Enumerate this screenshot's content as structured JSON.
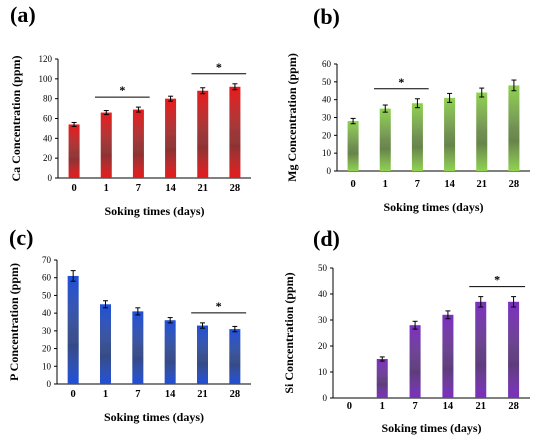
{
  "chart_data": [
    {
      "type": "bar",
      "panel_label": "(a)",
      "categories": [
        "0",
        "1",
        "7",
        "14",
        "21",
        "28"
      ],
      "values": [
        54,
        66,
        69,
        80,
        88,
        92
      ],
      "errors": [
        2,
        2,
        2.5,
        2.5,
        3,
        3
      ],
      "xlabel": "Soking times (days)",
      "ylabel": "Ca Concentration (ppm)",
      "ylim": [
        0,
        120
      ],
      "yticks": [
        "0",
        "20",
        "40",
        "60",
        "80",
        "100",
        "120"
      ],
      "color": "#e8191a",
      "significance": [
        {
          "from": 1,
          "to": 2,
          "label": "*"
        },
        {
          "from": 4,
          "to": 5,
          "label": "*"
        }
      ]
    },
    {
      "type": "bar",
      "panel_label": "(b)",
      "categories": [
        "0",
        "1",
        "7",
        "14",
        "21",
        "28"
      ],
      "values": [
        28,
        35,
        38,
        41,
        44,
        48
      ],
      "errors": [
        1.5,
        2,
        2.5,
        2.5,
        2.5,
        3
      ],
      "xlabel": "Soking times (days)",
      "ylabel": "Mg Concentration (ppm)",
      "ylim": [
        0,
        60
      ],
      "yticks": [
        "0",
        "10",
        "20",
        "30",
        "40",
        "50",
        "60"
      ],
      "color": "#8fd14f",
      "significance": [
        {
          "from": 1,
          "to": 2,
          "label": "*"
        }
      ]
    },
    {
      "type": "bar",
      "panel_label": "(c)",
      "categories": [
        "0",
        "1",
        "7",
        "14",
        "21",
        "28"
      ],
      "values": [
        61,
        45,
        41,
        36,
        33,
        31
      ],
      "errors": [
        3,
        2,
        2,
        1.5,
        1.5,
        1.5
      ],
      "xlabel": "Soking times (days)",
      "ylabel": "P Concentration (ppm)",
      "ylim": [
        0,
        70
      ],
      "yticks": [
        "0",
        "10",
        "20",
        "30",
        "40",
        "50",
        "60",
        "70"
      ],
      "color": "#1f4fd8",
      "significance": [
        {
          "from": 4,
          "to": 5,
          "label": "*"
        }
      ]
    },
    {
      "type": "bar",
      "panel_label": "(d)",
      "categories": [
        "0",
        "1",
        "7",
        "14",
        "21",
        "28"
      ],
      "values": [
        0,
        15,
        28,
        32,
        37,
        37
      ],
      "errors": [
        0,
        0.8,
        1.5,
        1.5,
        2,
        2
      ],
      "xlabel": "Soking times (days)",
      "ylabel": "Si Concentration (ppm)",
      "ylim": [
        0,
        50
      ],
      "yticks": [
        "0",
        "10",
        "20",
        "30",
        "40",
        "50"
      ],
      "color": "#7b2fbf",
      "significance": [
        {
          "from": 4,
          "to": 5,
          "label": "*"
        }
      ]
    }
  ]
}
